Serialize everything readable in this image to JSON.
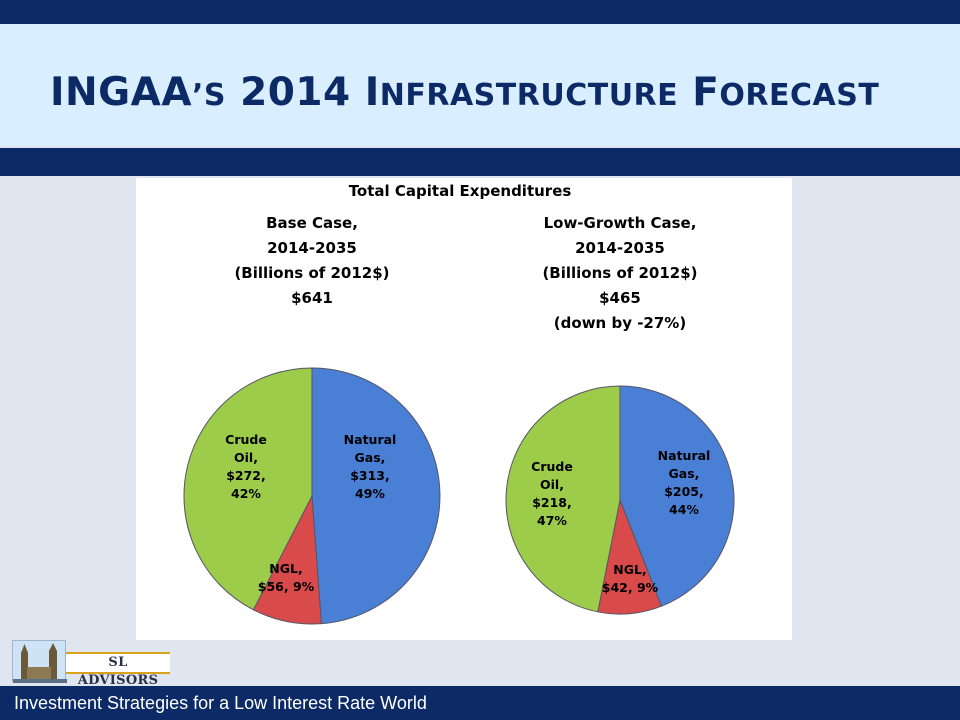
{
  "slide": {
    "title_parts": [
      {
        "text": "INGAA",
        "small": false
      },
      {
        "text": "’S",
        "small": true
      },
      {
        "text": " 2014 I",
        "small": false
      },
      {
        "text": "NFRASTRUCTURE",
        "small": true
      },
      {
        "text": " F",
        "small": false
      },
      {
        "text": "ORECAST",
        "small": true
      }
    ],
    "footer_text": "Investment Strategies for a Low Interest Rate World",
    "logo_text": "SL ADVISORS"
  },
  "colors": {
    "dark_navy": "#0b2a66",
    "title_band": "#d9efff",
    "natural_gas": "#4a7fd6",
    "ngl": "#d94a4a",
    "crude_oil": "#9ccc4a"
  },
  "chart_data": [
    {
      "type": "pie",
      "title": "Total Capital Expenditures",
      "subtitle_lines": [
        "Base Case,",
        "2014-2035",
        "(Billions of 2012$)",
        "$641"
      ],
      "slices": [
        {
          "name": "Natural Gas",
          "value": 313,
          "percent": 49,
          "label_lines": [
            "Natural",
            "Gas,",
            "$313,",
            "49%"
          ],
          "color": "#4a7fd6"
        },
        {
          "name": "NGL",
          "value": 56,
          "percent": 9,
          "label_lines": [
            "NGL,",
            "$56, 9%"
          ],
          "color": "#d94a4a"
        },
        {
          "name": "Crude Oil",
          "value": 272,
          "percent": 42,
          "label_lines": [
            "Crude",
            "Oil,",
            "$272,",
            "42%"
          ],
          "color": "#9ccc4a"
        }
      ]
    },
    {
      "type": "pie",
      "title": "Total Capital Expenditures",
      "subtitle_lines": [
        "Low-Growth Case,",
        "2014-2035",
        "(Billions of 2012$)",
        "$465",
        "(down by -27%)"
      ],
      "slices": [
        {
          "name": "Natural Gas",
          "value": 205,
          "percent": 44,
          "label_lines": [
            "Natural",
            "Gas,",
            "$205,",
            "44%"
          ],
          "color": "#4a7fd6"
        },
        {
          "name": "NGL",
          "value": 42,
          "percent": 9,
          "label_lines": [
            "NGL,",
            "$42, 9%"
          ],
          "color": "#d94a4a"
        },
        {
          "name": "Crude Oil",
          "value": 218,
          "percent": 47,
          "label_lines": [
            "Crude",
            "Oil,",
            "$218,",
            "47%"
          ],
          "color": "#9ccc4a"
        }
      ]
    }
  ]
}
